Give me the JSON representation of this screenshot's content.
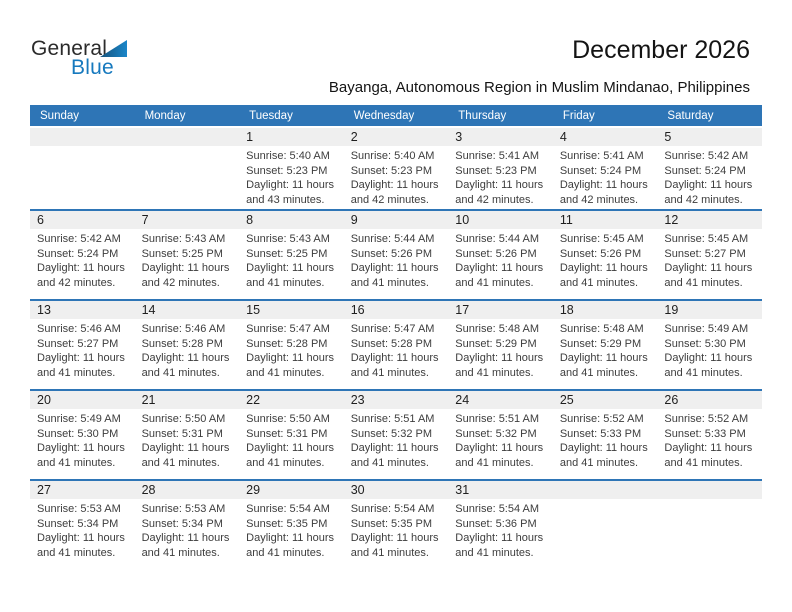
{
  "logo": {
    "word1": "General",
    "word2": "Blue",
    "accent_color": "#1679be"
  },
  "header": {
    "title": "December 2026",
    "subtitle": "Bayanga, Autonomous Region in Muslim Mindanao, Philippines"
  },
  "theme": {
    "header_bar_color": "#2e75b6",
    "separator_color": "#2e75b6",
    "day_strip_color": "#efefef"
  },
  "calendar": {
    "day_headers": [
      "Sunday",
      "Monday",
      "Tuesday",
      "Wednesday",
      "Thursday",
      "Friday",
      "Saturday"
    ],
    "weeks": [
      [
        null,
        null,
        {
          "num": "1",
          "sunrise": "Sunrise: 5:40 AM",
          "sunset": "Sunset: 5:23 PM",
          "daylight": "Daylight: 11 hours and 43 minutes."
        },
        {
          "num": "2",
          "sunrise": "Sunrise: 5:40 AM",
          "sunset": "Sunset: 5:23 PM",
          "daylight": "Daylight: 11 hours and 42 minutes."
        },
        {
          "num": "3",
          "sunrise": "Sunrise: 5:41 AM",
          "sunset": "Sunset: 5:23 PM",
          "daylight": "Daylight: 11 hours and 42 minutes."
        },
        {
          "num": "4",
          "sunrise": "Sunrise: 5:41 AM",
          "sunset": "Sunset: 5:24 PM",
          "daylight": "Daylight: 11 hours and 42 minutes."
        },
        {
          "num": "5",
          "sunrise": "Sunrise: 5:42 AM",
          "sunset": "Sunset: 5:24 PM",
          "daylight": "Daylight: 11 hours and 42 minutes."
        }
      ],
      [
        {
          "num": "6",
          "sunrise": "Sunrise: 5:42 AM",
          "sunset": "Sunset: 5:24 PM",
          "daylight": "Daylight: 11 hours and 42 minutes."
        },
        {
          "num": "7",
          "sunrise": "Sunrise: 5:43 AM",
          "sunset": "Sunset: 5:25 PM",
          "daylight": "Daylight: 11 hours and 42 minutes."
        },
        {
          "num": "8",
          "sunrise": "Sunrise: 5:43 AM",
          "sunset": "Sunset: 5:25 PM",
          "daylight": "Daylight: 11 hours and 41 minutes."
        },
        {
          "num": "9",
          "sunrise": "Sunrise: 5:44 AM",
          "sunset": "Sunset: 5:26 PM",
          "daylight": "Daylight: 11 hours and 41 minutes."
        },
        {
          "num": "10",
          "sunrise": "Sunrise: 5:44 AM",
          "sunset": "Sunset: 5:26 PM",
          "daylight": "Daylight: 11 hours and 41 minutes."
        },
        {
          "num": "11",
          "sunrise": "Sunrise: 5:45 AM",
          "sunset": "Sunset: 5:26 PM",
          "daylight": "Daylight: 11 hours and 41 minutes."
        },
        {
          "num": "12",
          "sunrise": "Sunrise: 5:45 AM",
          "sunset": "Sunset: 5:27 PM",
          "daylight": "Daylight: 11 hours and 41 minutes."
        }
      ],
      [
        {
          "num": "13",
          "sunrise": "Sunrise: 5:46 AM",
          "sunset": "Sunset: 5:27 PM",
          "daylight": "Daylight: 11 hours and 41 minutes."
        },
        {
          "num": "14",
          "sunrise": "Sunrise: 5:46 AM",
          "sunset": "Sunset: 5:28 PM",
          "daylight": "Daylight: 11 hours and 41 minutes."
        },
        {
          "num": "15",
          "sunrise": "Sunrise: 5:47 AM",
          "sunset": "Sunset: 5:28 PM",
          "daylight": "Daylight: 11 hours and 41 minutes."
        },
        {
          "num": "16",
          "sunrise": "Sunrise: 5:47 AM",
          "sunset": "Sunset: 5:28 PM",
          "daylight": "Daylight: 11 hours and 41 minutes."
        },
        {
          "num": "17",
          "sunrise": "Sunrise: 5:48 AM",
          "sunset": "Sunset: 5:29 PM",
          "daylight": "Daylight: 11 hours and 41 minutes."
        },
        {
          "num": "18",
          "sunrise": "Sunrise: 5:48 AM",
          "sunset": "Sunset: 5:29 PM",
          "daylight": "Daylight: 11 hours and 41 minutes."
        },
        {
          "num": "19",
          "sunrise": "Sunrise: 5:49 AM",
          "sunset": "Sunset: 5:30 PM",
          "daylight": "Daylight: 11 hours and 41 minutes."
        }
      ],
      [
        {
          "num": "20",
          "sunrise": "Sunrise: 5:49 AM",
          "sunset": "Sunset: 5:30 PM",
          "daylight": "Daylight: 11 hours and 41 minutes."
        },
        {
          "num": "21",
          "sunrise": "Sunrise: 5:50 AM",
          "sunset": "Sunset: 5:31 PM",
          "daylight": "Daylight: 11 hours and 41 minutes."
        },
        {
          "num": "22",
          "sunrise": "Sunrise: 5:50 AM",
          "sunset": "Sunset: 5:31 PM",
          "daylight": "Daylight: 11 hours and 41 minutes."
        },
        {
          "num": "23",
          "sunrise": "Sunrise: 5:51 AM",
          "sunset": "Sunset: 5:32 PM",
          "daylight": "Daylight: 11 hours and 41 minutes."
        },
        {
          "num": "24",
          "sunrise": "Sunrise: 5:51 AM",
          "sunset": "Sunset: 5:32 PM",
          "daylight": "Daylight: 11 hours and 41 minutes."
        },
        {
          "num": "25",
          "sunrise": "Sunrise: 5:52 AM",
          "sunset": "Sunset: 5:33 PM",
          "daylight": "Daylight: 11 hours and 41 minutes."
        },
        {
          "num": "26",
          "sunrise": "Sunrise: 5:52 AM",
          "sunset": "Sunset: 5:33 PM",
          "daylight": "Daylight: 11 hours and 41 minutes."
        }
      ],
      [
        {
          "num": "27",
          "sunrise": "Sunrise: 5:53 AM",
          "sunset": "Sunset: 5:34 PM",
          "daylight": "Daylight: 11 hours and 41 minutes."
        },
        {
          "num": "28",
          "sunrise": "Sunrise: 5:53 AM",
          "sunset": "Sunset: 5:34 PM",
          "daylight": "Daylight: 11 hours and 41 minutes."
        },
        {
          "num": "29",
          "sunrise": "Sunrise: 5:54 AM",
          "sunset": "Sunset: 5:35 PM",
          "daylight": "Daylight: 11 hours and 41 minutes."
        },
        {
          "num": "30",
          "sunrise": "Sunrise: 5:54 AM",
          "sunset": "Sunset: 5:35 PM",
          "daylight": "Daylight: 11 hours and 41 minutes."
        },
        {
          "num": "31",
          "sunrise": "Sunrise: 5:54 AM",
          "sunset": "Sunset: 5:36 PM",
          "daylight": "Daylight: 11 hours and 41 minutes."
        },
        null,
        null
      ]
    ]
  }
}
